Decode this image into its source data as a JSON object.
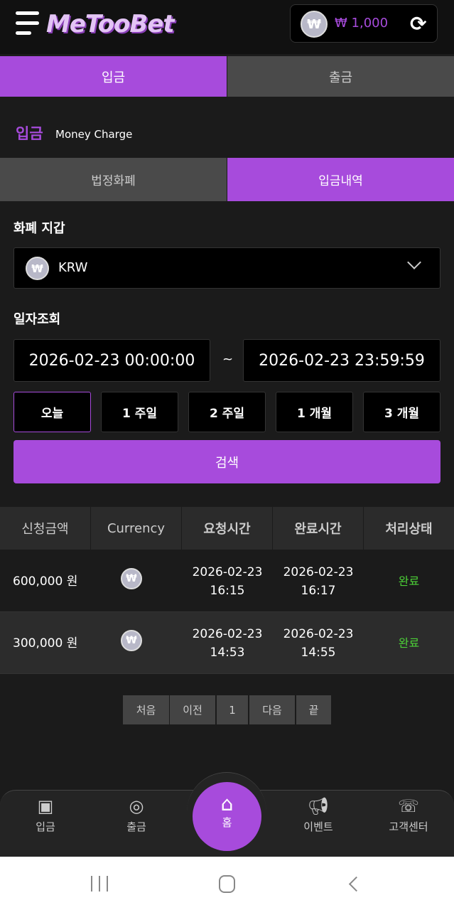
{
  "header": {
    "logo": "MeTooBet",
    "balance": "₩ 1,000",
    "currency_symbol": "₩"
  },
  "main_tabs": [
    {
      "label": "입금",
      "active": true
    },
    {
      "label": "출금",
      "active": false
    }
  ],
  "section": {
    "title": "입금",
    "subtitle": "Money Charge"
  },
  "sub_tabs": [
    {
      "label": "법정화폐",
      "active": false
    },
    {
      "label": "입금내역",
      "active": true
    }
  ],
  "wallet": {
    "label": "화폐 지갑",
    "value": "KRW"
  },
  "date_search": {
    "label": "일자조회",
    "from": "2026-02-23 00:00:00",
    "separator": "~",
    "to": "2026-02-23 23:59:59"
  },
  "periods": [
    "오늘",
    "1 주일",
    "2 주일",
    "1 개월",
    "3 개월"
  ],
  "search_label": "검색",
  "table": {
    "headers": [
      "신청금액",
      "Currency",
      "요청시간",
      "완료시간",
      "처리상태"
    ],
    "rows": [
      {
        "amount": "600,000 원",
        "req_date": "2026-02-23",
        "req_time": "16:15",
        "done_date": "2026-02-23",
        "done_time": "16:17",
        "status": "완료"
      },
      {
        "amount": "300,000 원",
        "req_date": "2026-02-23",
        "req_time": "14:53",
        "done_date": "2026-02-23",
        "done_time": "14:55",
        "status": "완료"
      }
    ]
  },
  "pagination": {
    "first": "처음",
    "prev": "이전",
    "current": "1",
    "next": "다음",
    "last": "끝"
  },
  "bottom_nav": [
    {
      "label": "입금",
      "icon": "wallet-deposit-icon"
    },
    {
      "label": "출금",
      "icon": "coin-hand-icon"
    },
    {
      "label": "홈",
      "icon": "home-icon"
    },
    {
      "label": "이벤트",
      "icon": "megaphone-icon"
    },
    {
      "label": "고객센터",
      "icon": "support-24-icon"
    }
  ],
  "colors": {
    "accent": "#a74bdc",
    "status_done": "#4cd137"
  }
}
